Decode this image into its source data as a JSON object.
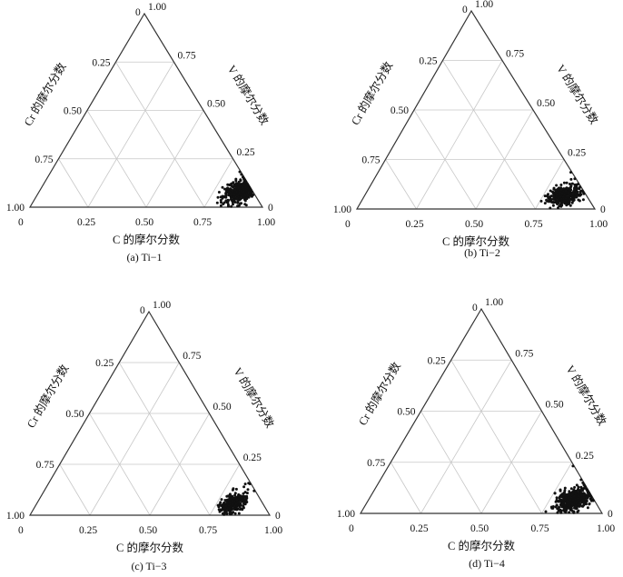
{
  "chart_data": [
    {
      "type": "scatter",
      "subtype": "ternary",
      "caption": "(a) Ti−1",
      "axes": {
        "bottom": {
          "label": "C 的摩尔分数",
          "ticks": [
            "0",
            "0.25",
            "0.50",
            "0.75",
            "1.00"
          ]
        },
        "left": {
          "label": "Cr 的摩尔分数",
          "ticks": [
            "0.25",
            "0.50",
            "0.75",
            "1.00"
          ]
        },
        "right": {
          "label": "V 的摩尔分数",
          "ticks": [
            "0.25",
            "0.50",
            "0.75",
            "1.00"
          ]
        },
        "apex_zero": "0",
        "right_zero": "0"
      },
      "grid": true,
      "cloud": {
        "c_center": 0.86,
        "v_center": 0.08,
        "c_spread": 0.06,
        "v_spread": 0.05,
        "n": 420,
        "seed": 11
      }
    },
    {
      "type": "scatter",
      "subtype": "ternary",
      "caption": "(b) Ti−2",
      "axes": {
        "bottom": {
          "label": "C 的摩尔分数",
          "ticks": [
            "0",
            "0.25",
            "0.50",
            "0.75",
            "1.00"
          ]
        },
        "left": {
          "label": "Cr 的摩尔分数",
          "ticks": [
            "0.25",
            "0.50",
            "0.75",
            "1.00"
          ]
        },
        "right": {
          "label": "V 的摩尔分数",
          "ticks": [
            "0.25",
            "0.50",
            "0.75",
            "1.00"
          ]
        },
        "apex_zero": "0",
        "right_zero": "0"
      },
      "grid": true,
      "cloud": {
        "c_center": 0.84,
        "v_center": 0.07,
        "c_spread": 0.06,
        "v_spread": 0.045,
        "n": 380,
        "seed": 23
      }
    },
    {
      "type": "scatter",
      "subtype": "ternary",
      "caption": "(c) Ti−3",
      "axes": {
        "bottom": {
          "label": "C 的摩尔分数",
          "ticks": [
            "0",
            "0.25",
            "0.50",
            "0.75",
            "1.00"
          ]
        },
        "left": {
          "label": "Cr 的摩尔分数",
          "ticks": [
            "0.25",
            "0.50",
            "0.75",
            "1.00"
          ]
        },
        "right": {
          "label": "V 的摩尔分数",
          "ticks": [
            "0.25",
            "0.50",
            "0.75",
            "1.00"
          ]
        },
        "apex_zero": "0",
        "right_zero": "0"
      },
      "grid": true,
      "cloud": {
        "c_center": 0.82,
        "v_center": 0.06,
        "c_spread": 0.05,
        "v_spread": 0.045,
        "n": 300,
        "seed": 37
      }
    },
    {
      "type": "scatter",
      "subtype": "ternary",
      "caption": "(d) Ti−4",
      "axes": {
        "bottom": {
          "label": "C 的摩尔分数",
          "ticks": [
            "0",
            "0.25",
            "0.50",
            "0.75",
            "1.00"
          ]
        },
        "left": {
          "label": "Cr 的摩尔分数",
          "ticks": [
            "0.25",
            "0.50",
            "0.75",
            "1.00"
          ]
        },
        "right": {
          "label": "V 的摩尔分数",
          "ticks": [
            "0.25",
            "0.50",
            "0.75",
            "1.00"
          ]
        },
        "apex_zero": "0",
        "right_zero": "0"
      },
      "grid": true,
      "cloud": {
        "c_center": 0.85,
        "v_center": 0.07,
        "c_spread": 0.07,
        "v_spread": 0.055,
        "n": 460,
        "seed": 53
      }
    }
  ]
}
